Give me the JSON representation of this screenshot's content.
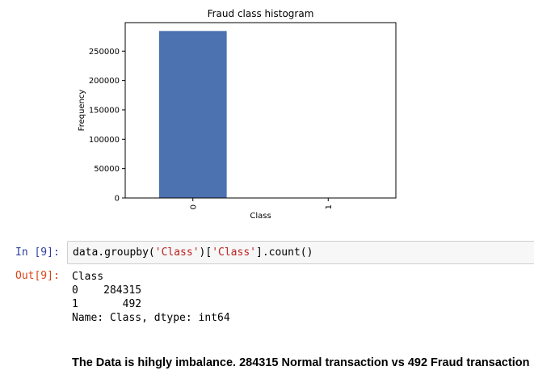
{
  "chart_data": {
    "type": "bar",
    "title": "Fraud class histogram",
    "xlabel": "Class",
    "ylabel": "Frequency",
    "categories": [
      "0",
      "1"
    ],
    "values": [
      284315,
      492
    ],
    "ylim": [
      0,
      298529
    ],
    "yticks": [
      0,
      50000,
      100000,
      150000,
      200000,
      250000
    ],
    "color": "#4c72b0",
    "grid": false
  },
  "notebook": {
    "in_prompt": "In [9]:",
    "out_prompt": "Out[9]:",
    "code_tokens": [
      {
        "text": "data.groupby(",
        "type": "plain"
      },
      {
        "text": "'Class'",
        "type": "string"
      },
      {
        "text": ")[",
        "type": "plain"
      },
      {
        "text": "'Class'",
        "type": "string"
      },
      {
        "text": "].count()",
        "type": "plain"
      }
    ],
    "output_lines": [
      "Class",
      "0    284315",
      "1       492",
      "Name: Class, dtype: int64"
    ]
  },
  "markdown": {
    "note": "The Data is hihgly imbalance. 284315 Normal transaction vs 492 Fraud transaction"
  }
}
